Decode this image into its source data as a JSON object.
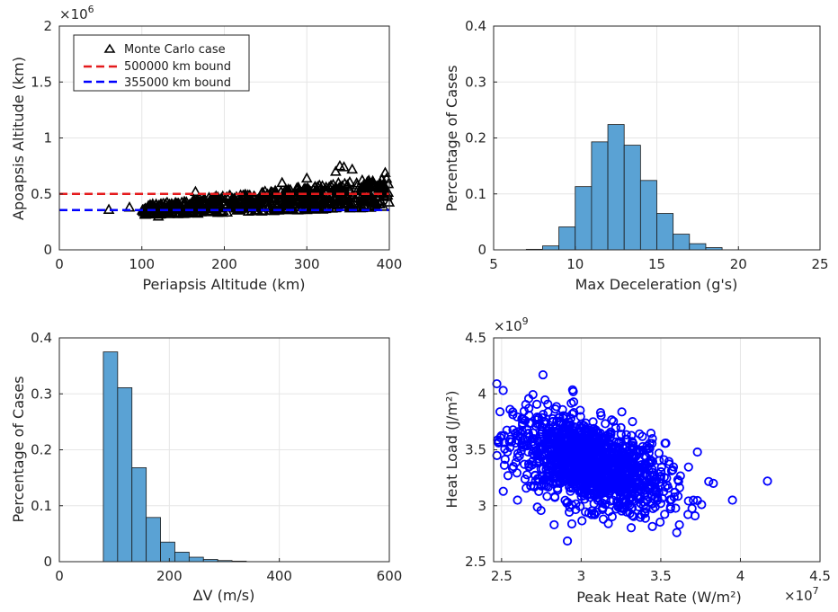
{
  "colors": {
    "tri": "#000000",
    "red": "#e41a1c",
    "blue": "#0000ff",
    "bar": "#5aa2d4",
    "circle": "#0000ff"
  },
  "chart_data": [
    {
      "type": "scatter",
      "xlabel": "Periapsis Altitude (km)",
      "ylabel": "Apoapsis Altitude (km)",
      "xlim": [
        0,
        400
      ],
      "ylim": [
        0,
        2000000
      ],
      "xticks": [
        "0",
        "100",
        "200",
        "300",
        "400"
      ],
      "yticks": [
        "0",
        "0.5",
        "1",
        "1.5",
        "2"
      ],
      "y_exponent": "6",
      "grid": true,
      "legend_placement": "top-left",
      "legend": [
        "Monte Carlo case",
        "500000 km bound",
        "355000 km bound"
      ],
      "hlines": [
        500000,
        355000
      ],
      "point_cloud": {
        "x_range": [
          100,
          400
        ],
        "y_min_at_x": [
          [
            100,
            310000
          ],
          [
            400,
            380000
          ]
        ],
        "y_max_at_x": [
          [
            100,
            400000
          ],
          [
            400,
            650000
          ]
        ]
      },
      "outliers": [
        [
          60,
          360000
        ],
        [
          85,
          380000
        ],
        [
          165,
          520000
        ],
        [
          190,
          480000
        ],
        [
          300,
          640000
        ],
        [
          335,
          700000
        ],
        [
          340,
          750000
        ],
        [
          345,
          740000
        ],
        [
          355,
          720000
        ],
        [
          395,
          690000
        ],
        [
          210,
          460000
        ],
        [
          120,
          300000
        ],
        [
          270,
          600000
        ]
      ]
    },
    {
      "type": "bar",
      "xlabel": "Max Deceleration (g's)",
      "ylabel": "Percentage of Cases",
      "xlim": [
        5,
        25
      ],
      "ylim": [
        0,
        0.4
      ],
      "xticks": [
        "5",
        "10",
        "15",
        "20",
        "25"
      ],
      "yticks": [
        "0",
        "0.1",
        "0.2",
        "0.3",
        "0.4"
      ],
      "grid": true,
      "bin_edges": [
        7,
        8,
        9,
        10,
        11,
        12,
        13,
        14,
        15,
        16,
        17,
        18,
        19
      ],
      "values": [
        0.001,
        0.007,
        0.041,
        0.113,
        0.193,
        0.224,
        0.187,
        0.124,
        0.065,
        0.028,
        0.011,
        0.004
      ]
    },
    {
      "type": "bar",
      "xlabel": "ΔV (m/s)",
      "ylabel": "Percentage of Cases",
      "xlim": [
        0,
        600
      ],
      "ylim": [
        0,
        0.4
      ],
      "xticks": [
        "0",
        "200",
        "400",
        "600"
      ],
      "yticks": [
        "0",
        "0.1",
        "0.2",
        "0.3",
        "0.4"
      ],
      "grid": true,
      "bin_edges": [
        80,
        106,
        132,
        158,
        184,
        210,
        236,
        262,
        288,
        314,
        340
      ],
      "values": [
        0.375,
        0.311,
        0.168,
        0.079,
        0.035,
        0.017,
        0.008,
        0.004,
        0.002,
        0.001
      ]
    },
    {
      "type": "scatter",
      "xlabel": "Peak Heat Rate (W/m²)",
      "ylabel": "Heat Load (J/m²)",
      "xlim": [
        24500000,
        45000000
      ],
      "ylim": [
        2500000000,
        4500000000
      ],
      "xticks": [
        "2.5",
        "3",
        "3.5",
        "4",
        "4.5"
      ],
      "yticks": [
        "2.5",
        "3",
        "3.5",
        "4",
        "4.5"
      ],
      "x_exponent": "7",
      "y_exponent": "9",
      "grid": true,
      "cloud_center": [
        30500000,
        3380000000
      ],
      "cloud_spread": [
        2800000,
        220000000
      ],
      "outliers": [
        [
          41700000,
          3220000000
        ],
        [
          39500000,
          3050000000
        ],
        [
          24700000,
          4090000000
        ],
        [
          25100000,
          4030000000
        ],
        [
          27600000,
          4170000000
        ],
        [
          29500000,
          4020000000
        ],
        [
          24900000,
          3840000000
        ],
        [
          26000000,
          3050000000
        ],
        [
          28300000,
          2830000000
        ],
        [
          36000000,
          2760000000
        ],
        [
          38300000,
          3200000000
        ],
        [
          37300000,
          3480000000
        ]
      ]
    }
  ]
}
